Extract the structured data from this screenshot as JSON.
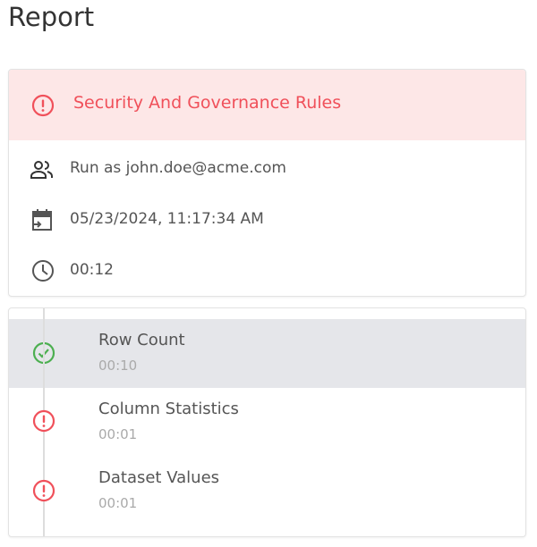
{
  "page": {
    "title": "Report"
  },
  "summary": {
    "status": "error",
    "name": "Security And Governance Rules",
    "run_as": "Run as john.doe@acme.com",
    "datetime": "05/23/2024, 11:17:34 AM",
    "duration": "00:12"
  },
  "steps": [
    {
      "name": "Row Count",
      "duration": "00:10",
      "status": "success",
      "selected": true
    },
    {
      "name": "Column Statistics",
      "duration": "00:01",
      "status": "error",
      "selected": false
    },
    {
      "name": "Dataset Values",
      "duration": "00:01",
      "status": "error",
      "selected": false
    }
  ],
  "colors": {
    "error": "#f0505a",
    "success": "#4caf50",
    "header_bg": "#fde7e7",
    "selected_bg": "#e5e6ea"
  }
}
